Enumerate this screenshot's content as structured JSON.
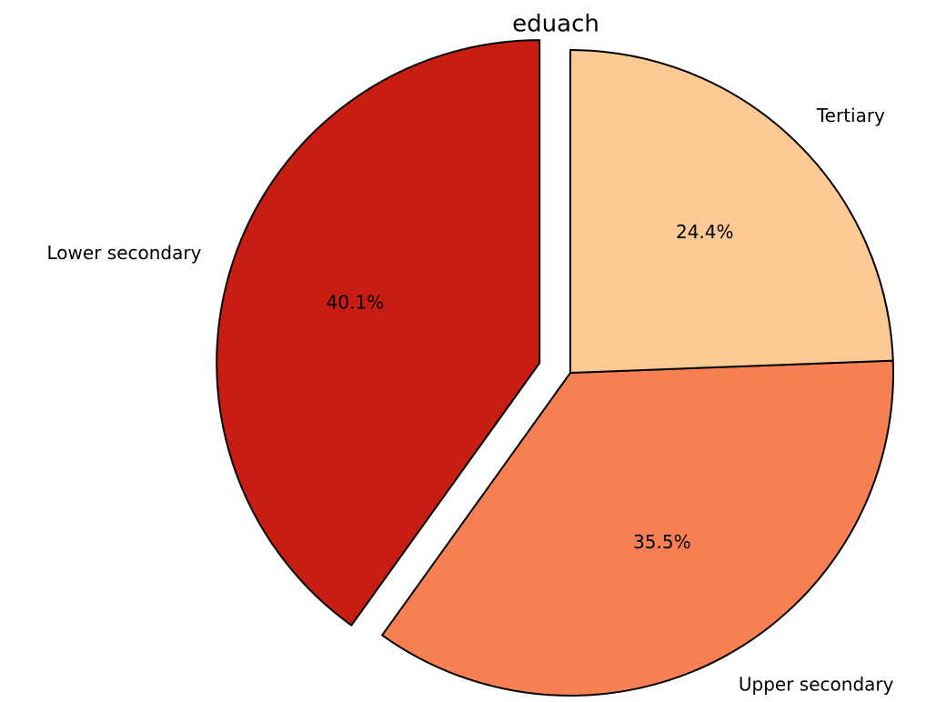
{
  "chart_data": {
    "type": "pie",
    "title": "eduach",
    "categories": [
      "Lower secondary",
      "Upper secondary",
      "Tertiary"
    ],
    "values": [
      40.1,
      35.5,
      24.4
    ],
    "value_labels": [
      "40.1%",
      "35.5%",
      "24.4%"
    ],
    "colors": [
      "#c81d13",
      "#f67f54",
      "#fcc893"
    ],
    "explode": [
      0.1,
      0,
      0
    ]
  }
}
